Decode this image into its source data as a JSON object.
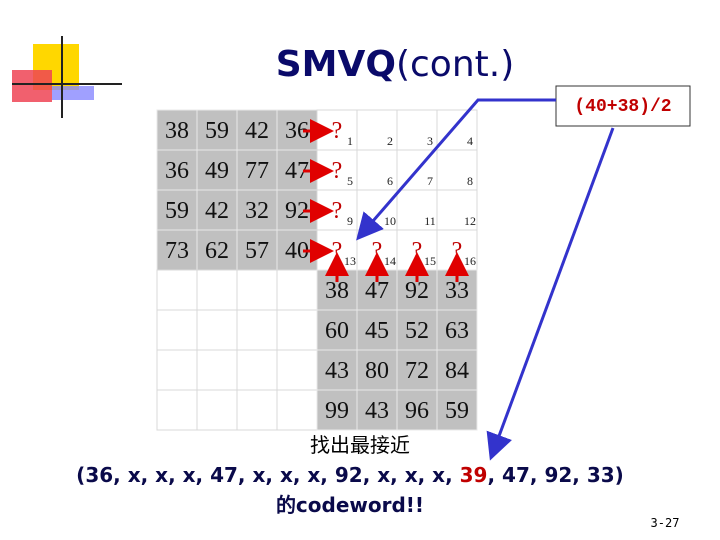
{
  "title": {
    "bold": "SMVQ",
    "rest": "(cont.)"
  },
  "formula": "(40+38)/2",
  "left_block": [
    [
      38,
      59,
      42,
      36
    ],
    [
      36,
      49,
      77,
      47
    ],
    [
      59,
      42,
      32,
      92
    ],
    [
      73,
      62,
      57,
      40
    ]
  ],
  "unknown_mark": "?",
  "indices": [
    1,
    2,
    3,
    4,
    5,
    6,
    7,
    8,
    9,
    10,
    11,
    12,
    13,
    14,
    15,
    16
  ],
  "bottom_right": [
    [
      38,
      47,
      92,
      33
    ],
    [
      60,
      45,
      52,
      63
    ],
    [
      43,
      80,
      72,
      84
    ],
    [
      99,
      43,
      96,
      59
    ]
  ],
  "caption": {
    "line1": "找出最接近",
    "line2_before": "(36, x, x, x, 47, x, x, x, 92, x, x, x, ",
    "line2_highlight": "39",
    "line2_after": ", 47, 92, 33)",
    "line3": "的codeword!!"
  },
  "page_number": "3-27"
}
